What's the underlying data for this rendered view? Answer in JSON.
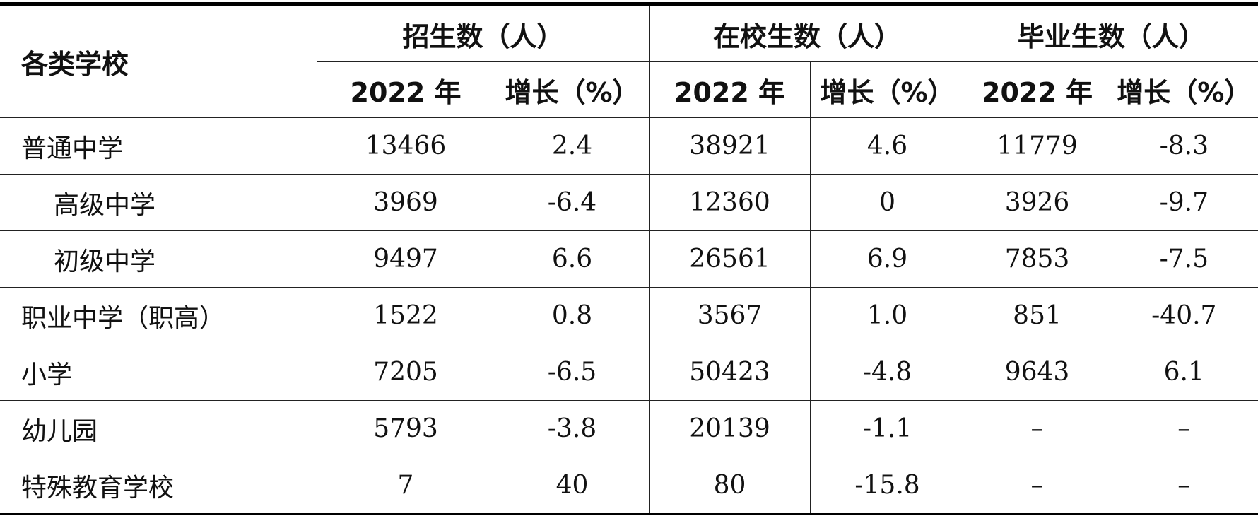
{
  "table": {
    "corner": "各类学校",
    "groups": [
      "招生数（人）",
      "在校生数（人）",
      "毕业生数（人）"
    ],
    "subheaders": [
      "2022 年",
      "增长（%）",
      "2022 年",
      "增长（%）",
      "2022 年",
      "增长（%）"
    ],
    "rows": [
      [
        "普通中学",
        "13466",
        "2.4",
        "38921",
        "4.6",
        "11779",
        "-8.3"
      ],
      [
        "高级中学",
        "3969",
        "-6.4",
        "12360",
        "0",
        "3926",
        "-9.7"
      ],
      [
        "初级中学",
        "9497",
        "6.6",
        "26561",
        "6.9",
        "7853",
        "-7.5"
      ],
      [
        "职业中学（职高）",
        "1522",
        "0.8",
        "3567",
        "1.0",
        "851",
        "-40.7"
      ],
      [
        "小学",
        "7205",
        "-6.5",
        "50423",
        "-4.8",
        "9643",
        "6.1"
      ],
      [
        "幼儿园",
        "5793",
        "-3.8",
        "20139",
        "-1.1",
        "–",
        "–"
      ],
      [
        "特殊教育学校",
        "7",
        "40",
        "80",
        "-15.8",
        "–",
        "–"
      ]
    ],
    "indented_rows": [
      1,
      2
    ]
  }
}
